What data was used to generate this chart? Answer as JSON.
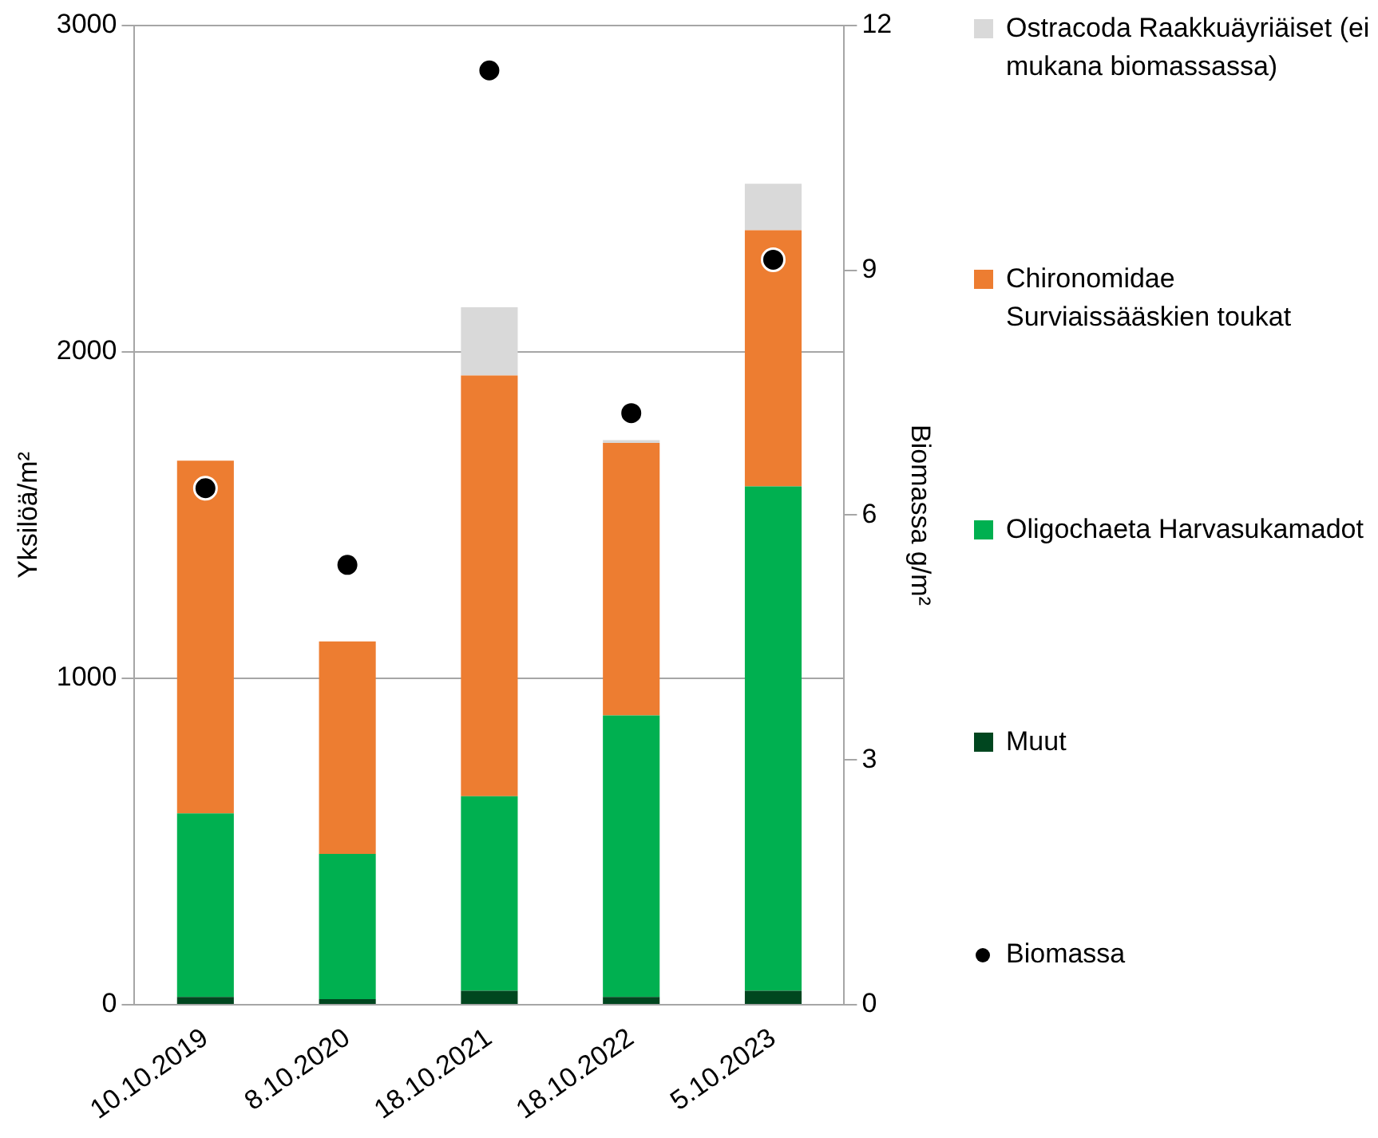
{
  "chart_data": {
    "type": "bar",
    "stacked": true,
    "categories": [
      "10.10.2019",
      "8.10.2020",
      "18.10.2021",
      "18.10.2022",
      "5.10.2023"
    ],
    "ylabel": "Yksilöä/m²",
    "y2label": "Biomassa g/m²",
    "ylim": [
      0,
      3000
    ],
    "yticks": [
      0,
      1000,
      2000,
      3000
    ],
    "y2lim": [
      0,
      12
    ],
    "y2ticks": [
      0,
      3,
      6,
      9,
      12
    ],
    "grid": "y",
    "legend": "right",
    "marker": "circle",
    "series": [
      {
        "name": "Muut",
        "color": "#00461f",
        "values": [
          24,
          17,
          43,
          24,
          43
        ]
      },
      {
        "name": "Oligochaeta Harvasukamadot",
        "color": "#00b050",
        "values": [
          562,
          445,
          596,
          862,
          1545
        ]
      },
      {
        "name": "Chironomidae Surviaissääskien toukat",
        "color": "#ed7d31",
        "values": [
          1081,
          651,
          1289,
          835,
          785
        ]
      },
      {
        "name": "Ostracoda Raakkuäyriäiset (ei mukana biomassassa)",
        "color": "#d9d9d9",
        "values": [
          0,
          0,
          209,
          9,
          142
        ]
      },
      {
        "name": "Biomassa",
        "type": "scatter",
        "axis": "y2",
        "color": "#000000",
        "values": [
          6.33,
          5.39,
          11.45,
          7.25,
          9.13
        ]
      }
    ]
  }
}
